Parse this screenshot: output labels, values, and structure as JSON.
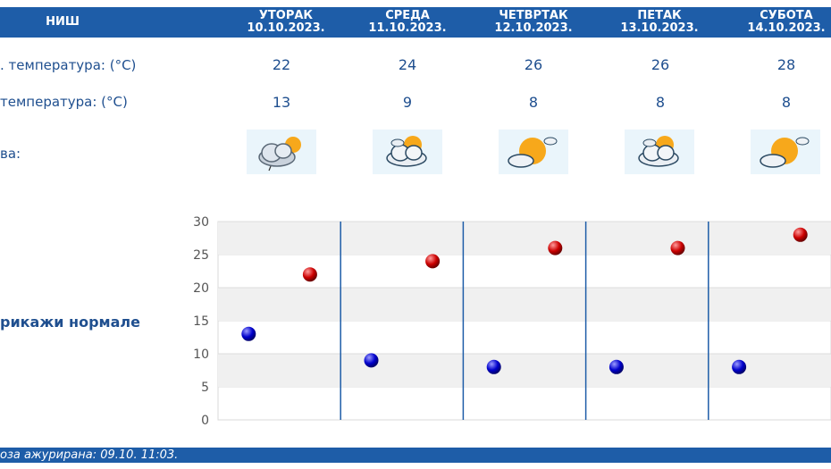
{
  "header": {
    "city": "НИШ",
    "days": [
      {
        "name": "УТОРАК",
        "date": "10.10.2023."
      },
      {
        "name": "СРЕДА",
        "date": "11.10.2023."
      },
      {
        "name": "ЧЕТВРТАК",
        "date": "12.10.2023."
      },
      {
        "name": "ПЕТАК",
        "date": "13.10.2023."
      },
      {
        "name": "СУБОТА",
        "date": "14.10.2023."
      }
    ]
  },
  "rows": {
    "max_label": ". температура: (°C)",
    "min_label": " температура: (°C)",
    "weather_label": "ва:"
  },
  "max_temps": [
    "22",
    "24",
    "26",
    "26",
    "28"
  ],
  "min_temps": [
    "13",
    "9",
    "8",
    "8",
    "8"
  ],
  "weather_icons": [
    "cloudy-sun-light-rain-icon",
    "partly-cloudy-icon",
    "sun-cloud-icon",
    "partly-cloudy-icon",
    "sun-cloud-icon"
  ],
  "normals_link": "рикажи нормале",
  "footer": {
    "text": "оза ажурирана:  09.10. 11:03."
  },
  "colors": {
    "accent": "#1e5da8",
    "max_point": "#cc0000",
    "min_point": "#0000cc"
  },
  "chart_data": {
    "type": "scatter",
    "categories": [
      "10.10.2023.",
      "11.10.2023.",
      "12.10.2023.",
      "13.10.2023.",
      "14.10.2023."
    ],
    "series": [
      {
        "values": [
          22,
          24,
          26,
          26,
          28
        ]
      },
      {
        "values": [
          13,
          9,
          8,
          8,
          8
        ]
      }
    ],
    "ylim": [
      0,
      30
    ],
    "yticks": [
      "0",
      "5",
      "10",
      "15",
      "20",
      "25",
      "30"
    ],
    "grid": true
  }
}
